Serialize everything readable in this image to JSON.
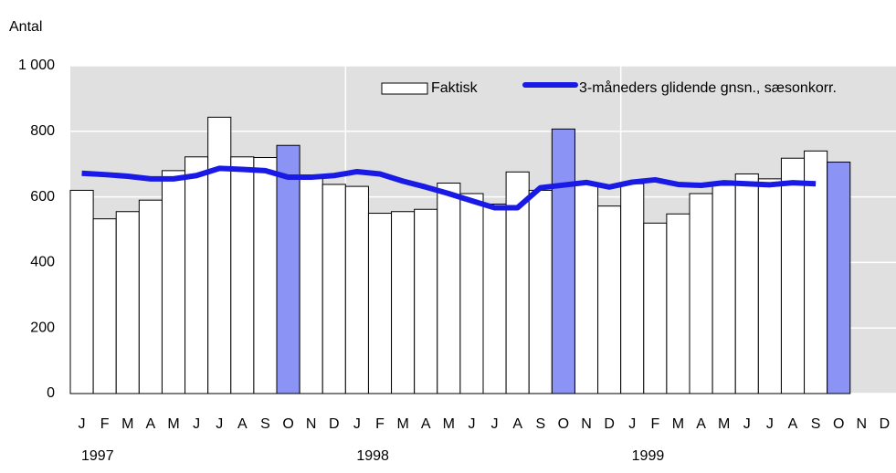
{
  "chart_data": {
    "type": "bar",
    "y_label": "Antal",
    "categories": [
      "J",
      "F",
      "M",
      "A",
      "M",
      "J",
      "J",
      "A",
      "S",
      "O",
      "N",
      "D",
      "J",
      "F",
      "M",
      "A",
      "M",
      "J",
      "J",
      "A",
      "S",
      "O",
      "N",
      "D",
      "J",
      "F",
      "M",
      "A",
      "M",
      "J",
      "J",
      "A",
      "S",
      "O",
      "N",
      "D"
    ],
    "year_labels": [
      "1997",
      "1998",
      "1999"
    ],
    "series": [
      {
        "name": "Faktisk",
        "type": "bar",
        "color": "#ffffff",
        "colors": [
          "#ffffff",
          "#ffffff",
          "#ffffff",
          "#ffffff",
          "#ffffff",
          "#ffffff",
          "#ffffff",
          "#ffffff",
          "#ffffff",
          "#8b93f5",
          "#ffffff",
          "#ffffff",
          "#ffffff",
          "#ffffff",
          "#ffffff",
          "#ffffff",
          "#ffffff",
          "#ffffff",
          "#ffffff",
          "#ffffff",
          "#ffffff",
          "#8b93f5",
          "#ffffff",
          "#ffffff",
          "#ffffff",
          "#ffffff",
          "#ffffff",
          "#ffffff",
          "#ffffff",
          "#ffffff",
          "#ffffff",
          "#ffffff",
          "#ffffff",
          "#8b93f5",
          "#ffffff",
          "#ffffff"
        ],
        "values": [
          620,
          533,
          555,
          590,
          680,
          722,
          843,
          722,
          720,
          757,
          660,
          638,
          632,
          550,
          555,
          562,
          642,
          610,
          578,
          676,
          620,
          807,
          640,
          572,
          640,
          520,
          548,
          610,
          635,
          670,
          655,
          718,
          740,
          706,
          null,
          null
        ]
      },
      {
        "name": "3-måneders glidende gnsn., sæsonkorr.",
        "type": "line",
        "color": "#1a1ae6",
        "values": [
          672,
          668,
          663,
          655,
          655,
          665,
          687,
          684,
          680,
          660,
          660,
          665,
          677,
          670,
          648,
          630,
          610,
          588,
          567,
          567,
          628,
          636,
          644,
          630,
          645,
          652,
          638,
          635,
          643,
          640,
          637,
          643,
          640,
          null,
          null,
          null
        ]
      }
    ],
    "ylim": [
      0,
      1000
    ],
    "yticks": [
      0,
      200,
      400,
      600,
      800,
      {
        "value": 1000,
        "label": "1 000"
      }
    ],
    "grid": true
  }
}
